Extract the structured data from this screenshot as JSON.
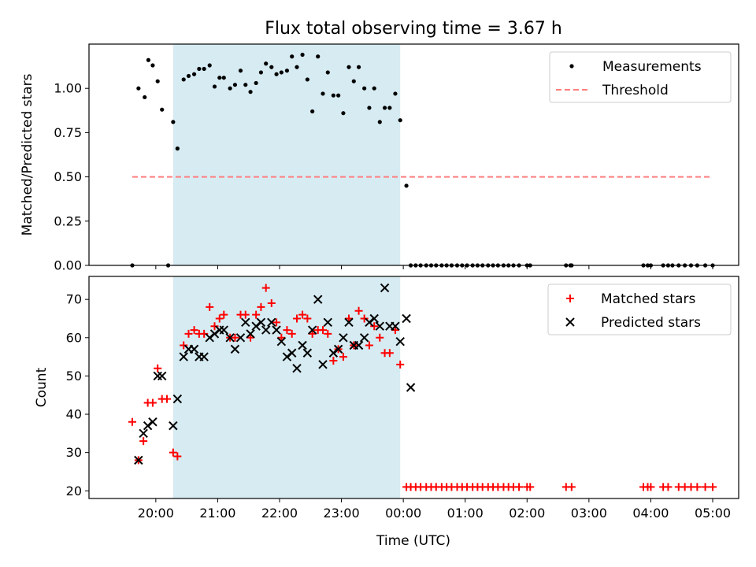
{
  "title": "Flux total observing time = 3.67 h",
  "xlabel": "Time (UTC)",
  "x_tick_labels": [
    "20:00",
    "21:00",
    "22:00",
    "23:00",
    "00:00",
    "01:00",
    "02:00",
    "03:00",
    "04:00",
    "05:00"
  ],
  "colors": {
    "measurements": "#000000",
    "threshold": "#ff7f7f",
    "matched": "#ff0000",
    "predicted": "#000000",
    "observing_band": "#add8e6"
  },
  "chart_data": [
    {
      "type": "scatter",
      "ylabel": "Matched/Predicted stars",
      "x_unit": "hours since 00:00 UTC of first night (24 = 00:00 next day)",
      "xlim": [
        18.92,
        29.42
      ],
      "ylim": [
        0.0,
        1.25
      ],
      "y_ticks": [
        0.0,
        0.25,
        0.5,
        0.75,
        1.0
      ],
      "y_tick_labels": [
        "0.00",
        "0.25",
        "0.50",
        "0.75",
        "1.00"
      ],
      "shaded_interval": [
        20.28,
        23.95
      ],
      "legend": {
        "position": "top-right",
        "entries": [
          "Measurements",
          "Threshold"
        ]
      },
      "threshold": {
        "name": "Threshold",
        "y": 0.5,
        "x_range": [
          19.62,
          29.0
        ]
      },
      "series": [
        {
          "name": "Measurements",
          "points": [
            [
              19.62,
              0.0
            ],
            [
              19.72,
              1.0
            ],
            [
              19.82,
              0.95
            ],
            [
              19.88,
              1.16
            ],
            [
              19.95,
              1.13
            ],
            [
              20.03,
              1.04
            ],
            [
              20.1,
              0.88
            ],
            [
              20.2,
              0.0
            ],
            [
              20.28,
              0.81
            ],
            [
              20.35,
              0.66
            ],
            [
              20.45,
              1.05
            ],
            [
              20.53,
              1.07
            ],
            [
              20.62,
              1.08
            ],
            [
              20.7,
              1.11
            ],
            [
              20.78,
              1.11
            ],
            [
              20.87,
              1.13
            ],
            [
              20.95,
              1.01
            ],
            [
              21.03,
              1.06
            ],
            [
              21.1,
              1.06
            ],
            [
              21.2,
              1.0
            ],
            [
              21.28,
              1.02
            ],
            [
              21.37,
              1.1
            ],
            [
              21.45,
              1.02
            ],
            [
              21.53,
              0.98
            ],
            [
              21.62,
              1.03
            ],
            [
              21.7,
              1.09
            ],
            [
              21.78,
              1.14
            ],
            [
              21.87,
              1.12
            ],
            [
              21.95,
              1.08
            ],
            [
              22.03,
              1.09
            ],
            [
              22.12,
              1.1
            ],
            [
              22.2,
              1.18
            ],
            [
              22.28,
              1.12
            ],
            [
              22.37,
              1.19
            ],
            [
              22.45,
              1.05
            ],
            [
              22.53,
              0.87
            ],
            [
              22.62,
              1.18
            ],
            [
              22.7,
              0.97
            ],
            [
              22.78,
              1.09
            ],
            [
              22.87,
              0.96
            ],
            [
              22.95,
              0.96
            ],
            [
              23.03,
              0.86
            ],
            [
              23.12,
              1.12
            ],
            [
              23.2,
              1.04
            ],
            [
              23.28,
              1.12
            ],
            [
              23.37,
              1.0
            ],
            [
              23.45,
              0.89
            ],
            [
              23.53,
              1.0
            ],
            [
              23.62,
              0.81
            ],
            [
              23.7,
              0.89
            ],
            [
              23.78,
              0.89
            ],
            [
              23.87,
              0.97
            ],
            [
              23.95,
              0.82
            ],
            [
              24.05,
              0.45
            ],
            [
              24.12,
              0.0
            ],
            [
              24.2,
              0.0
            ],
            [
              24.28,
              0.0
            ],
            [
              24.37,
              0.0
            ],
            [
              24.45,
              0.0
            ],
            [
              24.53,
              0.0
            ],
            [
              24.62,
              0.0
            ],
            [
              24.7,
              0.0
            ],
            [
              24.78,
              0.0
            ],
            [
              24.87,
              0.0
            ],
            [
              24.95,
              0.0
            ],
            [
              25.03,
              0.0
            ],
            [
              25.12,
              0.0
            ],
            [
              25.2,
              0.0
            ],
            [
              25.28,
              0.0
            ],
            [
              25.37,
              0.0
            ],
            [
              25.45,
              0.0
            ],
            [
              25.53,
              0.0
            ],
            [
              25.62,
              0.0
            ],
            [
              25.7,
              0.0
            ],
            [
              25.78,
              0.0
            ],
            [
              25.87,
              0.0
            ],
            [
              26.0,
              0.0
            ],
            [
              26.05,
              0.0
            ],
            [
              26.63,
              0.0
            ],
            [
              26.7,
              0.0
            ],
            [
              26.72,
              0.0
            ],
            [
              27.88,
              0.0
            ],
            [
              27.95,
              0.0
            ],
            [
              28.0,
              0.0
            ],
            [
              28.2,
              0.0
            ],
            [
              28.28,
              0.0
            ],
            [
              28.35,
              0.0
            ],
            [
              28.45,
              0.0
            ],
            [
              28.55,
              0.0
            ],
            [
              28.65,
              0.0
            ],
            [
              28.75,
              0.0
            ],
            [
              28.88,
              0.0
            ],
            [
              29.0,
              0.0
            ]
          ]
        }
      ]
    },
    {
      "type": "scatter",
      "ylabel": "Count",
      "x_unit": "hours since 00:00 UTC of first night (24 = 00:00 next day)",
      "xlim": [
        18.92,
        29.42
      ],
      "ylim": [
        18.0,
        76.0
      ],
      "y_ticks": [
        20,
        30,
        40,
        50,
        60,
        70
      ],
      "y_tick_labels": [
        "20",
        "30",
        "40",
        "50",
        "60",
        "70"
      ],
      "shaded_interval": [
        20.28,
        23.95
      ],
      "legend": {
        "position": "top-right",
        "entries": [
          "Matched stars",
          "Predicted stars"
        ]
      },
      "series": [
        {
          "name": "Matched stars",
          "marker": "plus",
          "points": [
            [
              19.62,
              38
            ],
            [
              19.72,
              28
            ],
            [
              19.8,
              33
            ],
            [
              19.87,
              43
            ],
            [
              19.95,
              43
            ],
            [
              20.03,
              52
            ],
            [
              20.1,
              44
            ],
            [
              20.18,
              44
            ],
            [
              20.28,
              30
            ],
            [
              20.35,
              29
            ],
            [
              20.45,
              58
            ],
            [
              20.53,
              61
            ],
            [
              20.62,
              62
            ],
            [
              20.7,
              61
            ],
            [
              20.78,
              61
            ],
            [
              20.87,
              68
            ],
            [
              20.95,
              63
            ],
            [
              21.03,
              65
            ],
            [
              21.1,
              66
            ],
            [
              21.2,
              60
            ],
            [
              21.28,
              60
            ],
            [
              21.37,
              66
            ],
            [
              21.45,
              66
            ],
            [
              21.53,
              60
            ],
            [
              21.62,
              66
            ],
            [
              21.7,
              68
            ],
            [
              21.78,
              73
            ],
            [
              21.87,
              69
            ],
            [
              21.95,
              64
            ],
            [
              22.03,
              60
            ],
            [
              22.12,
              62
            ],
            [
              22.2,
              61
            ],
            [
              22.28,
              65
            ],
            [
              22.37,
              66
            ],
            [
              22.45,
              65
            ],
            [
              22.53,
              61
            ],
            [
              22.62,
              62
            ],
            [
              22.7,
              62
            ],
            [
              22.78,
              61
            ],
            [
              22.87,
              54
            ],
            [
              22.95,
              57
            ],
            [
              23.03,
              55
            ],
            [
              23.12,
              65
            ],
            [
              23.2,
              58
            ],
            [
              23.28,
              67
            ],
            [
              23.37,
              65
            ],
            [
              23.45,
              58
            ],
            [
              23.53,
              63
            ],
            [
              23.62,
              60
            ],
            [
              23.7,
              56
            ],
            [
              23.78,
              56
            ],
            [
              23.87,
              62
            ],
            [
              23.95,
              53
            ],
            [
              24.05,
              21
            ],
            [
              24.12,
              21
            ],
            [
              24.2,
              21
            ],
            [
              24.28,
              21
            ],
            [
              24.37,
              21
            ],
            [
              24.45,
              21
            ],
            [
              24.53,
              21
            ],
            [
              24.62,
              21
            ],
            [
              24.7,
              21
            ],
            [
              24.78,
              21
            ],
            [
              24.87,
              21
            ],
            [
              24.95,
              21
            ],
            [
              25.03,
              21
            ],
            [
              25.12,
              21
            ],
            [
              25.2,
              21
            ],
            [
              25.28,
              21
            ],
            [
              25.37,
              21
            ],
            [
              25.45,
              21
            ],
            [
              25.53,
              21
            ],
            [
              25.62,
              21
            ],
            [
              25.7,
              21
            ],
            [
              25.78,
              21
            ],
            [
              25.87,
              21
            ],
            [
              26.0,
              21
            ],
            [
              26.05,
              21
            ],
            [
              26.63,
              21
            ],
            [
              26.72,
              21
            ],
            [
              27.88,
              21
            ],
            [
              27.95,
              21
            ],
            [
              28.0,
              21
            ],
            [
              28.2,
              21
            ],
            [
              28.28,
              21
            ],
            [
              28.45,
              21
            ],
            [
              28.55,
              21
            ],
            [
              28.65,
              21
            ],
            [
              28.75,
              21
            ],
            [
              28.88,
              21
            ],
            [
              29.0,
              21
            ]
          ]
        },
        {
          "name": "Predicted stars",
          "marker": "x",
          "points": [
            [
              19.72,
              28
            ],
            [
              19.8,
              35
            ],
            [
              19.87,
              37
            ],
            [
              19.95,
              38
            ],
            [
              20.03,
              50
            ],
            [
              20.1,
              50
            ],
            [
              20.28,
              37
            ],
            [
              20.35,
              44
            ],
            [
              20.45,
              55
            ],
            [
              20.53,
              57
            ],
            [
              20.62,
              57
            ],
            [
              20.7,
              55
            ],
            [
              20.78,
              55
            ],
            [
              20.87,
              60
            ],
            [
              20.95,
              61
            ],
            [
              21.03,
              62
            ],
            [
              21.1,
              62
            ],
            [
              21.2,
              60
            ],
            [
              21.28,
              57
            ],
            [
              21.37,
              60
            ],
            [
              21.45,
              64
            ],
            [
              21.53,
              61
            ],
            [
              21.62,
              63
            ],
            [
              21.7,
              64
            ],
            [
              21.78,
              62
            ],
            [
              21.87,
              64
            ],
            [
              21.95,
              62
            ],
            [
              22.03,
              59
            ],
            [
              22.12,
              55
            ],
            [
              22.2,
              56
            ],
            [
              22.28,
              52
            ],
            [
              22.37,
              58
            ],
            [
              22.45,
              56
            ],
            [
              22.53,
              62
            ],
            [
              22.62,
              70
            ],
            [
              22.7,
              53
            ],
            [
              22.78,
              64
            ],
            [
              22.87,
              56
            ],
            [
              22.95,
              57
            ],
            [
              23.03,
              60
            ],
            [
              23.12,
              64
            ],
            [
              23.2,
              58
            ],
            [
              23.28,
              58
            ],
            [
              23.37,
              60
            ],
            [
              23.45,
              64
            ],
            [
              23.53,
              65
            ],
            [
              23.62,
              63
            ],
            [
              23.7,
              73
            ],
            [
              23.78,
              63
            ],
            [
              23.87,
              63
            ],
            [
              23.95,
              59
            ],
            [
              24.05,
              65
            ],
            [
              24.12,
              47
            ]
          ]
        }
      ]
    }
  ]
}
